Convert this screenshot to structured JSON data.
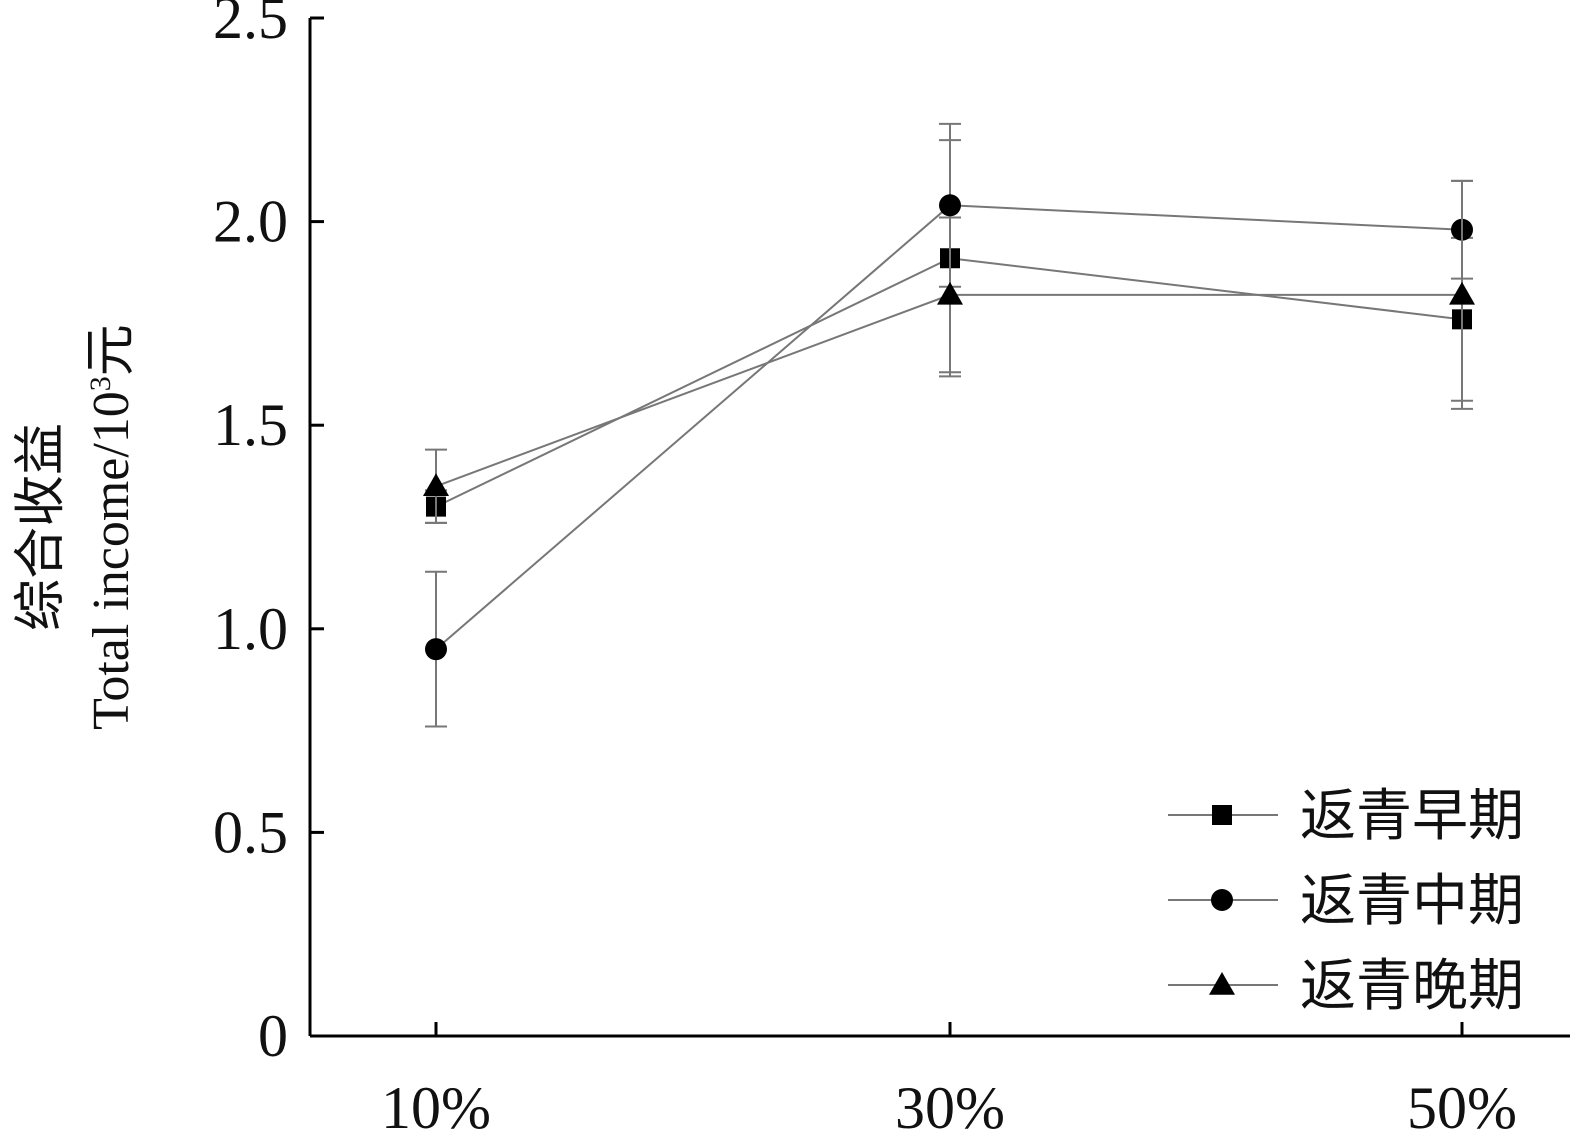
{
  "chart_data": {
    "type": "line",
    "categories": [
      "10%",
      "30%",
      "50%"
    ],
    "ylim": [
      0,
      2.5
    ],
    "yticks": [
      "0",
      "0.5",
      "1.0",
      "1.5",
      "2.0",
      "2.5"
    ],
    "ylabel_cn": "综合收益",
    "ylabel_en": "Total income/10",
    "ylabel_sup": "3",
    "ylabel_unit": "元",
    "xlabel": "",
    "legend_position": "bottom-right",
    "series": [
      {
        "name": "返青早期",
        "marker": "square",
        "values": [
          1.3,
          1.91,
          1.76
        ],
        "errors": [
          0.04,
          0.29,
          0.2
        ]
      },
      {
        "name": "返青中期",
        "marker": "circle",
        "values": [
          0.95,
          2.04,
          1.98
        ],
        "errors": [
          0.19,
          0.2,
          0.12
        ]
      },
      {
        "name": "返青晚期",
        "marker": "triangle",
        "values": [
          1.35,
          1.82,
          1.82
        ],
        "errors": [
          0.09,
          0.19,
          0.28
        ]
      }
    ],
    "colors": {
      "line": "#777777",
      "marker": "#000000",
      "axis": "#000000"
    }
  }
}
